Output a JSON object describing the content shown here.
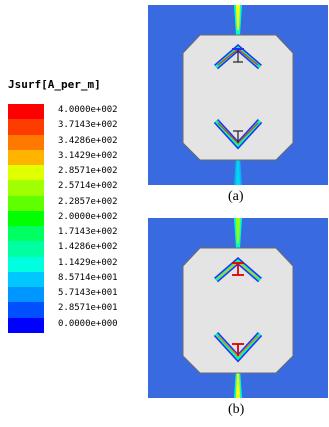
{
  "legend": {
    "title": "Jsurf[A_per_m]",
    "items": [
      {
        "label": "4.0000e+002",
        "color": "#ff0000"
      },
      {
        "label": "3.7143e+002",
        "color": "#ff3c00"
      },
      {
        "label": "3.4286e+002",
        "color": "#ff7800"
      },
      {
        "label": "3.1429e+002",
        "color": "#ffb400"
      },
      {
        "label": "2.8571e+002",
        "color": "#e0ff00"
      },
      {
        "label": "2.5714e+002",
        "color": "#a0ff00"
      },
      {
        "label": "2.2857e+002",
        "color": "#60ff00"
      },
      {
        "label": "2.0000e+002",
        "color": "#00ff00"
      },
      {
        "label": "1.7143e+002",
        "color": "#00ff60"
      },
      {
        "label": "1.4286e+002",
        "color": "#00ffa0"
      },
      {
        "label": "1.1429e+002",
        "color": "#00ffe0"
      },
      {
        "label": "8.5714e+001",
        "color": "#00c8ff"
      },
      {
        "label": "5.7143e+001",
        "color": "#0096ff"
      },
      {
        "label": "2.8571e+001",
        "color": "#0050ff"
      },
      {
        "label": "0.0000e+000",
        "color": "#0000ff"
      }
    ]
  },
  "panels": [
    {
      "caption": "(a)"
    },
    {
      "caption": "(b)"
    }
  ],
  "colors": {
    "background_field": "#3a6ae0",
    "body": "#e4e4e4"
  }
}
